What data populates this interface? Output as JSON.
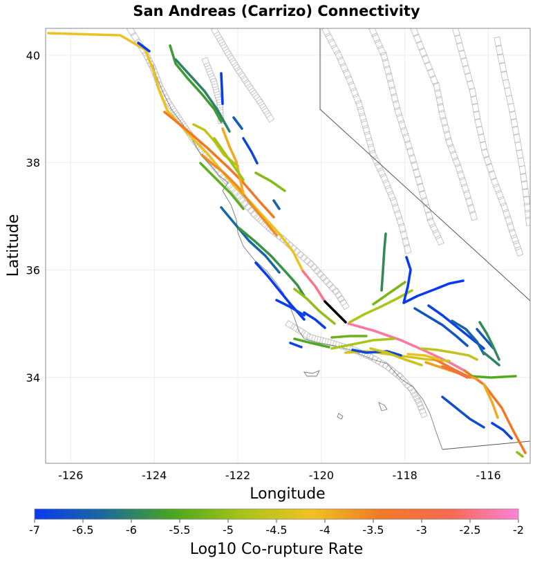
{
  "title": "San Andreas (Carrizo) Connectivity",
  "x_axis": {
    "label": "Longitude",
    "range": [
      -126.6,
      -115.0
    ],
    "ticks": [
      -126,
      -124,
      -122,
      -120,
      -118,
      -116
    ],
    "tick_labels": [
      "-126",
      "-124",
      "-122",
      "-120",
      "-118",
      "-116"
    ]
  },
  "y_axis": {
    "label": "Latitude",
    "range": [
      32.4,
      40.5
    ],
    "ticks": [
      34,
      36,
      38,
      40
    ],
    "tick_labels": [
      "34",
      "36",
      "38",
      "40"
    ]
  },
  "colorbar": {
    "label": "Log10 Co-rupture Rate",
    "range": [
      -7,
      -2
    ],
    "ticks": [
      -7,
      -6.5,
      -6,
      -5.5,
      -5,
      -4.5,
      -4,
      -3.5,
      -3,
      -2.5,
      -2
    ],
    "tick_labels": [
      "-7",
      "-6.5",
      "-6",
      "-5.5",
      "-5",
      "-4.5",
      "-4",
      "-3.5",
      "-3",
      "-2.5",
      "-2"
    ],
    "stops": [
      "#0a3af0",
      "#1a6a9a",
      "#4aa61e",
      "#a7c418",
      "#f0c222",
      "#f07a26",
      "#f56a50",
      "#ff82d8"
    ]
  },
  "highlight_color": "#000000",
  "outline_color": "#bfbfbf"
}
